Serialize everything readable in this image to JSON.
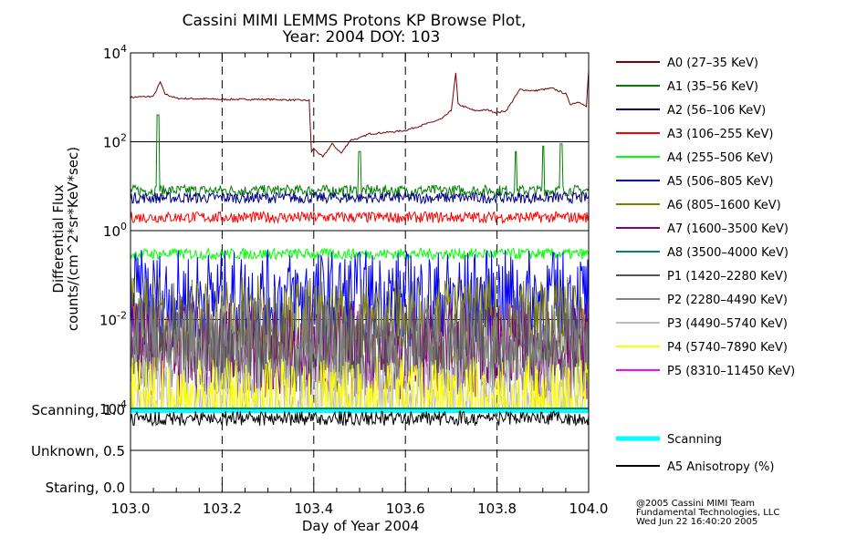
{
  "chart_data": {
    "type": "line",
    "title_line1": "Cassini MIMI LEMMS Protons KP Browse Plot,",
    "title_line2": "Year: 2004 DOY: 103",
    "xlabel": "Day of Year 2004",
    "ylabel_line1": "Differential Flux",
    "ylabel_line2": "counts/(cm^2*sr*KeV*sec)",
    "xlim": [
      103.0,
      104.0
    ],
    "x_ticks": [
      "103.0",
      "103.2",
      "103.4",
      "103.6",
      "103.8",
      "104.0"
    ],
    "y_scale": "log",
    "ylim": [
      0.0001,
      10000
    ],
    "y_ticks": [
      {
        "base": "10",
        "exp": "4",
        "value": 10000
      },
      {
        "base": "10",
        "exp": "2",
        "value": 100
      },
      {
        "base": "10",
        "exp": "0",
        "value": 1
      },
      {
        "base": "10",
        "exp": "-2",
        "value": 0.01
      },
      {
        "base": "10",
        "exp": "-4",
        "value": 0.0001
      }
    ],
    "series": [
      {
        "name": "A0 (27–35 KeV)",
        "color": "#7a0000",
        "points": [
          [
            103.0,
            1000
          ],
          [
            103.05,
            1050
          ],
          [
            103.065,
            2200
          ],
          [
            103.075,
            1200
          ],
          [
            103.1,
            950
          ],
          [
            103.2,
            900
          ],
          [
            103.3,
            900
          ],
          [
            103.39,
            850
          ],
          [
            103.395,
            60
          ],
          [
            103.4,
            70
          ],
          [
            103.42,
            45
          ],
          [
            103.44,
            90
          ],
          [
            103.46,
            55
          ],
          [
            103.48,
            110
          ],
          [
            103.5,
            120
          ],
          [
            103.52,
            150
          ],
          [
            103.55,
            160
          ],
          [
            103.58,
            170
          ],
          [
            103.6,
            180
          ],
          [
            103.65,
            260
          ],
          [
            103.68,
            330
          ],
          [
            103.7,
            500
          ],
          [
            103.71,
            3500
          ],
          [
            103.715,
            700
          ],
          [
            103.75,
            500
          ],
          [
            103.78,
            520
          ],
          [
            103.8,
            450
          ],
          [
            103.82,
            500
          ],
          [
            103.85,
            1500
          ],
          [
            103.88,
            1400
          ],
          [
            103.9,
            1500
          ],
          [
            103.92,
            1600
          ],
          [
            103.95,
            1200
          ],
          [
            103.96,
            700
          ],
          [
            103.98,
            800
          ],
          [
            103.995,
            600
          ],
          [
            104.0,
            4000
          ]
        ]
      },
      {
        "name": "A1 (35–56 KeV)",
        "color": "#008000",
        "base": 8,
        "spikes": [
          [
            103.06,
            400
          ],
          [
            103.5,
            60
          ],
          [
            103.84,
            60
          ],
          [
            103.9,
            80
          ],
          [
            103.94,
            90
          ]
        ]
      },
      {
        "name": "A2 (56–106 KeV)",
        "color": "#000080",
        "base": 5.5,
        "spikes": []
      },
      {
        "name": "A3 (106–255 KeV)",
        "color": "#ff0000",
        "base": 2.0,
        "spikes": []
      },
      {
        "name": "A4 (255–506 KeV)",
        "color": "#00ff00",
        "base": 0.3,
        "spikes": []
      },
      {
        "name": "A5 (506–805 KeV)",
        "color": "#0000ff",
        "base": 0.03,
        "spikes": []
      },
      {
        "name": "A6 (805–1600 KeV)",
        "color": "#808000",
        "base": 0.008,
        "spikes": []
      },
      {
        "name": "A7 (1600–3500 KeV)",
        "color": "#800080",
        "base": 0.002,
        "spikes": []
      },
      {
        "name": "A8 (3500–4000 KeV)",
        "color": "#008080",
        "base": null,
        "spikes": []
      },
      {
        "name": "P1 (1420–2280 KeV)",
        "color": "#555555",
        "base": 0.0025,
        "spikes": []
      },
      {
        "name": "P2 (2280–4490 KeV)",
        "color": "#808080",
        "base": 0.003,
        "spikes": []
      },
      {
        "name": "P3 (4490–5740 KeV)",
        "color": "#bbbbbb",
        "base": 0.00012,
        "spikes": []
      },
      {
        "name": "P4 (5740–7890 KeV)",
        "color": "#ffff00",
        "base": 0.00012,
        "spikes": []
      },
      {
        "name": "P5 (8310–11450 KeV)",
        "color": "#ff00ff",
        "base": null,
        "spikes": []
      }
    ],
    "lower_panel": {
      "y_labels": [
        "Scanning, 1.0",
        "Unknown, 0.5",
        "Staring, 0.0"
      ],
      "series": [
        {
          "name": "Scanning",
          "color": "#00ffff",
          "value": 1.0
        },
        {
          "name": "A5 Anisotropy (%)",
          "color": "#000000",
          "value": 0.9
        }
      ]
    },
    "footer": [
      "@2005 Cassini MIMI Team",
      "Fundamental Technologies, LLC",
      "Wed Jun 22 16:40:20 2005"
    ]
  }
}
